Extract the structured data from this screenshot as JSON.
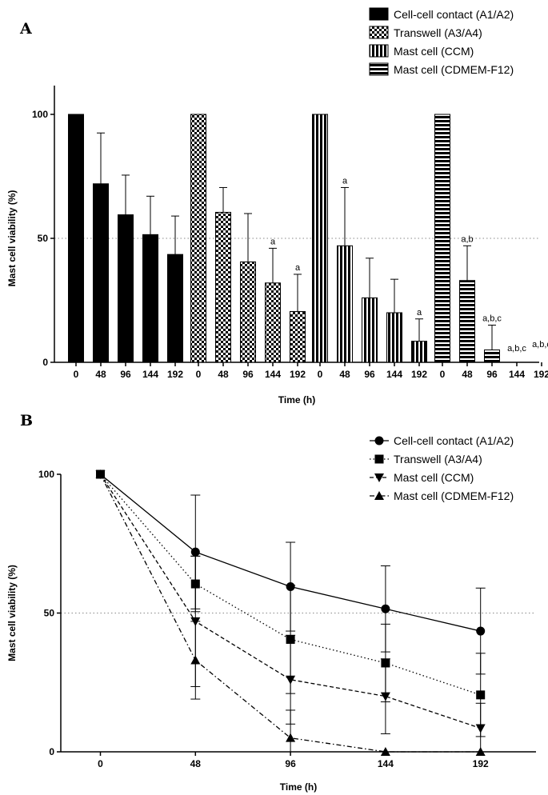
{
  "chart_data": [
    {
      "panel": "A",
      "type": "bar",
      "ylabel": "Mast cell viability (%)",
      "xlabel": "Time (h)",
      "ylim": [
        0,
        100
      ],
      "yticks": [
        0,
        50,
        100
      ],
      "reference_line": 50,
      "grid": false,
      "legend_position": "top-right",
      "categories": [
        "0",
        "48",
        "96",
        "144",
        "192"
      ],
      "series": [
        {
          "name": "Cell-cell contact (A1/A2)",
          "pattern": "solid",
          "values": [
            100,
            72,
            59.5,
            51.5,
            43.5
          ],
          "error": [
            0,
            20.5,
            16,
            15.5,
            15.5
          ],
          "annotations": [
            "",
            "",
            "",
            "",
            ""
          ]
        },
        {
          "name": "Transwell (A3/A4)",
          "pattern": "checker",
          "values": [
            100,
            60.5,
            40.5,
            32,
            20.5
          ],
          "error": [
            0,
            10,
            19.5,
            14,
            15
          ],
          "annotations": [
            "",
            "",
            "",
            "a",
            "a"
          ]
        },
        {
          "name": "Mast cell (CCM)",
          "pattern": "vertical-stripes",
          "values": [
            100,
            47,
            26,
            20,
            8.5
          ],
          "error": [
            0,
            23.5,
            16,
            13.5,
            9
          ],
          "annotations": [
            "",
            "a",
            "",
            "",
            "a"
          ]
        },
        {
          "name": "Mast cell (CDMEM-F12)",
          "pattern": "horizontal-stripes",
          "values": [
            100,
            33,
            5,
            0,
            0
          ],
          "error": [
            0,
            14,
            10,
            0,
            0
          ],
          "annotations": [
            "",
            "a,b",
            "a,b,c",
            "a,b,c",
            "a,b,c"
          ]
        }
      ]
    },
    {
      "panel": "B",
      "type": "line",
      "ylabel": "Mast cell viability (%)",
      "xlabel": "Time (h)",
      "ylim": [
        0,
        100
      ],
      "yticks": [
        0,
        50,
        100
      ],
      "xlim": [
        -20,
        220
      ],
      "x": [
        0,
        48,
        96,
        144,
        192
      ],
      "xticks": [
        "0",
        "48",
        "96",
        "144",
        "192"
      ],
      "reference_line": 50,
      "grid": false,
      "legend_position": "top-right",
      "series": [
        {
          "name": "Cell-cell contact (A1/A2)",
          "marker": "circle",
          "dash": "solid",
          "values": [
            100,
            72,
            59.5,
            51.5,
            43.5
          ],
          "error": [
            0,
            20.5,
            16,
            15.5,
            15.5
          ]
        },
        {
          "name": "Transwell (A3/A4)",
          "marker": "square",
          "dash": "dotted",
          "values": [
            100,
            60.5,
            40.5,
            32,
            20.5
          ],
          "error": [
            0,
            10,
            19.5,
            14,
            15
          ]
        },
        {
          "name": "Mast cell (CCM)",
          "marker": "triangle-down",
          "dash": "dashed",
          "values": [
            100,
            47,
            26,
            20,
            8.5
          ],
          "error": [
            0,
            23.5,
            16,
            13.5,
            9
          ]
        },
        {
          "name": "Mast cell (CDMEM-F12)",
          "marker": "triangle-up",
          "dash": "dash-dot",
          "values": [
            100,
            33,
            5,
            0,
            0
          ],
          "error": [
            0,
            14,
            10,
            0,
            0
          ]
        }
      ]
    }
  ]
}
